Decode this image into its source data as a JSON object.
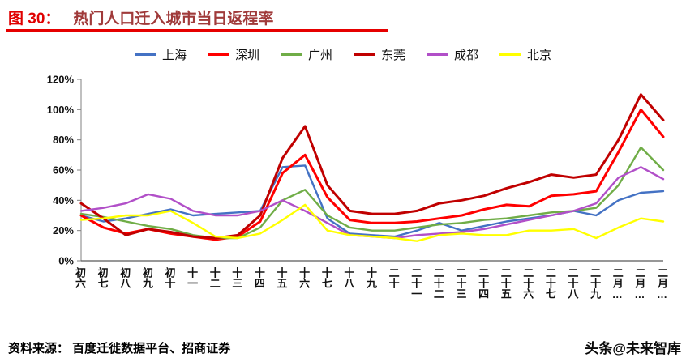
{
  "figure": {
    "label": "图 30：",
    "title": "热门人口迁入城市当日返程率"
  },
  "footer": {
    "source": "资料来源： 百度迁徙数据平台、招商证券",
    "watermark": "头条@未来智库"
  },
  "style": {
    "figure_label_color": "#E00000",
    "figure_title_color": "#A03A3A",
    "underline_color": "#E60000",
    "axis_color": "#808080",
    "baseline_color": "#595959",
    "tick_label_color": "#111111"
  },
  "chart_data": {
    "type": "line",
    "title": "热门人口迁入城市当日返程率",
    "xlabel": "",
    "ylabel": "",
    "ylim": [
      0,
      120
    ],
    "yticks": [
      "0%",
      "20%",
      "40%",
      "60%",
      "80%",
      "100%",
      "120%"
    ],
    "grid": false,
    "legend_position": "top",
    "categories": [
      "初六",
      "初七",
      "初八",
      "初九",
      "初十",
      "十一",
      "十二",
      "十三",
      "十四",
      "十五",
      "十六",
      "十七",
      "十八",
      "十九",
      "二十",
      "二十一",
      "二十二",
      "二十三",
      "二十四",
      "二十五",
      "二十六",
      "二十七",
      "二十八",
      "二十九",
      "二月…",
      "二月…",
      "二月…"
    ],
    "series": [
      {
        "name": "上海",
        "color": "#4472C4",
        "values": [
          30,
          26,
          28,
          31,
          34,
          30,
          31,
          32,
          33,
          62,
          63,
          28,
          18,
          17,
          16,
          20,
          25,
          20,
          23,
          26,
          28,
          30,
          33,
          30,
          40,
          45,
          46
        ]
      },
      {
        "name": "深圳",
        "color": "#FF0000",
        "values": [
          30,
          22,
          18,
          21,
          18,
          16,
          14,
          16,
          26,
          58,
          70,
          42,
          27,
          25,
          25,
          26,
          28,
          30,
          34,
          37,
          36,
          43,
          44,
          46,
          72,
          100,
          82
        ]
      },
      {
        "name": "广州",
        "color": "#70AD47",
        "values": [
          31,
          29,
          26,
          23,
          21,
          17,
          15,
          15,
          22,
          40,
          47,
          30,
          22,
          20,
          20,
          22,
          24,
          25,
          27,
          28,
          30,
          32,
          33,
          35,
          50,
          75,
          60
        ]
      },
      {
        "name": "东莞",
        "color": "#C00000",
        "values": [
          38,
          28,
          17,
          21,
          19,
          16,
          15,
          17,
          30,
          68,
          89,
          50,
          33,
          31,
          31,
          33,
          38,
          40,
          43,
          48,
          52,
          57,
          55,
          57,
          80,
          110,
          93
        ]
      },
      {
        "name": "成都",
        "color": "#B14FC8",
        "values": [
          33,
          35,
          38,
          44,
          41,
          33,
          30,
          30,
          33,
          40,
          33,
          25,
          17,
          16,
          15,
          17,
          18,
          19,
          21,
          24,
          27,
          30,
          33,
          38,
          55,
          62,
          54
        ]
      },
      {
        "name": "北京",
        "color": "#FFFF00",
        "values": [
          27,
          28,
          30,
          30,
          33,
          25,
          16,
          15,
          18,
          27,
          37,
          20,
          17,
          16,
          15,
          13,
          17,
          18,
          17,
          17,
          20,
          20,
          21,
          15,
          22,
          28,
          26
        ]
      }
    ]
  }
}
